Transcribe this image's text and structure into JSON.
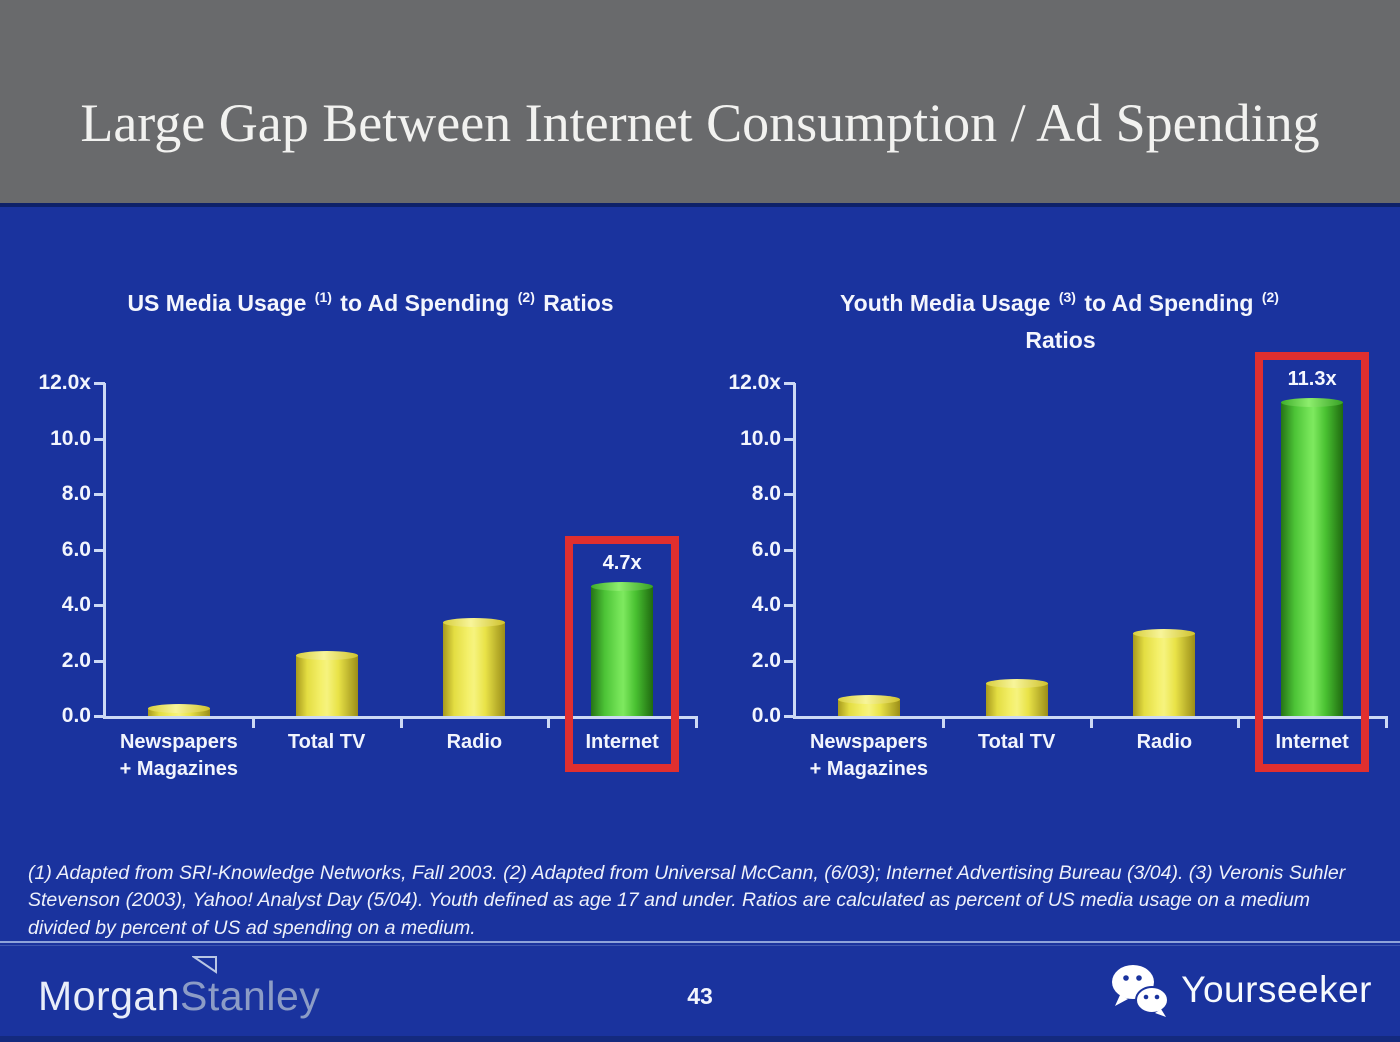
{
  "slide": {
    "title": "Large Gap Between Internet Consumption / Ad Spending",
    "footnote": "(1) Adapted from SRI-Knowledge Networks, Fall 2003.  (2) Adapted from Universal McCann, (6/03); Internet Advertising Bureau (3/04). (3) Veronis Suhler Stevenson (2003), Yahoo! Analyst Day (5/04).  Youth defined as age 17 and under.  Ratios are calculated as percent of US media usage on a medium divided by percent of US ad spending on a medium."
  },
  "footer": {
    "page_number": "43",
    "brand_part1": "Morgan",
    "brand_part2": "Stanley",
    "watermark_label": "Yourseeker",
    "icons": {
      "watermark": "wechat-icon",
      "brand": "triangle-flag-icon"
    }
  },
  "colors": {
    "background_blue": "#1a339e",
    "header_gray": "#696a6c",
    "highlight_red": "#e02f2f",
    "bar_yellow": "#efe94d",
    "bar_green": "#55d33c",
    "axis": "#ccd9f5",
    "text": "#f2f5fd"
  },
  "chart_data": [
    {
      "type": "bar",
      "title": "US Media Usage (1) to Ad Spending (2) Ratios",
      "title_lines": [
        [
          {
            "text": "US Media Usage "
          },
          {
            "sup": "(1)"
          },
          {
            "text": " to Ad Spending "
          },
          {
            "sup": "(2)"
          },
          {
            "text": " Ratios"
          }
        ]
      ],
      "categories": [
        {
          "label": "Newspapers + Magazines",
          "lines": [
            "Newspapers",
            "+ Magazines"
          ]
        },
        {
          "label": "Total TV",
          "lines": [
            "Total TV"
          ]
        },
        {
          "label": "Radio",
          "lines": [
            "Radio"
          ]
        },
        {
          "label": "Internet",
          "lines": [
            "Internet"
          ]
        }
      ],
      "values": [
        0.3,
        2.2,
        3.4,
        4.7
      ],
      "bar_colors": [
        "yellow",
        "yellow",
        "yellow",
        "green"
      ],
      "yticks": {
        "labels": [
          "12.0x",
          "10.0",
          "8.0",
          "6.0",
          "4.0",
          "2.0",
          "0.0"
        ],
        "values": [
          12,
          10,
          8,
          6,
          4,
          2,
          0
        ]
      },
      "ylim": [
        0,
        12
      ],
      "grid": false,
      "highlight": {
        "index": 3,
        "label": "4.7x"
      }
    },
    {
      "type": "bar",
      "title": "Youth Media Usage (3) to Ad Spending (2) Ratios",
      "title_lines": [
        [
          {
            "text": "Youth Media Usage "
          },
          {
            "sup": "(3)"
          },
          {
            "text": " to Ad Spending "
          },
          {
            "sup": "(2)"
          }
        ],
        [
          {
            "text": "Ratios"
          }
        ]
      ],
      "categories": [
        {
          "label": "Newspapers + Magazines",
          "lines": [
            "Newspapers",
            "+ Magazines"
          ]
        },
        {
          "label": "Total TV",
          "lines": [
            "Total TV"
          ]
        },
        {
          "label": "Radio",
          "lines": [
            "Radio"
          ]
        },
        {
          "label": "Internet",
          "lines": [
            "Internet"
          ]
        }
      ],
      "values": [
        0.6,
        1.2,
        3.0,
        11.3
      ],
      "bar_colors": [
        "yellow",
        "yellow",
        "yellow",
        "green"
      ],
      "yticks": {
        "labels": [
          "12.0x",
          "10.0",
          "8.0",
          "6.0",
          "4.0",
          "2.0",
          "0.0"
        ],
        "values": [
          12,
          10,
          8,
          6,
          4,
          2,
          0
        ]
      },
      "ylim": [
        0,
        12
      ],
      "grid": false,
      "highlight": {
        "index": 3,
        "label": "11.3x"
      }
    }
  ]
}
